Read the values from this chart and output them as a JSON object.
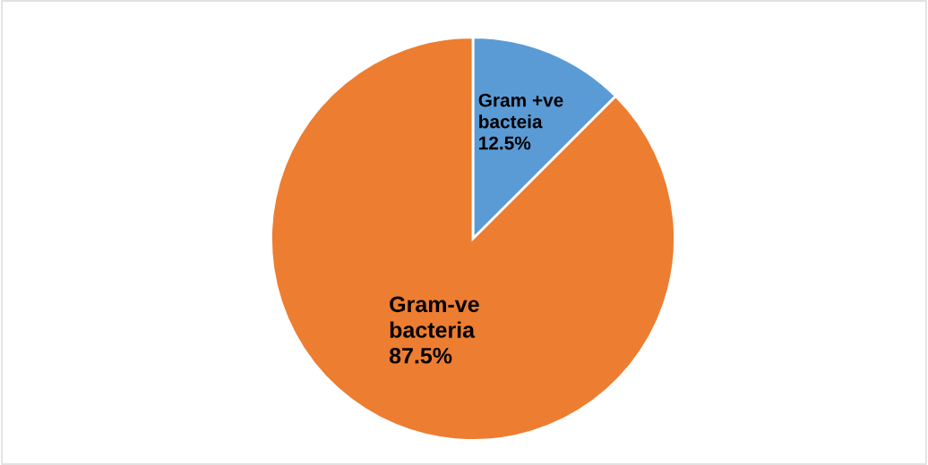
{
  "chart_data": {
    "type": "pie",
    "categories": [
      "Gram +ve bacteia",
      "Gram-ve bacteria"
    ],
    "values": [
      12.5,
      87.5
    ],
    "value_labels": [
      "12.5%",
      "87.5%"
    ],
    "colors": [
      "#5b9bd5",
      "#ed7d31"
    ],
    "legend": false
  }
}
